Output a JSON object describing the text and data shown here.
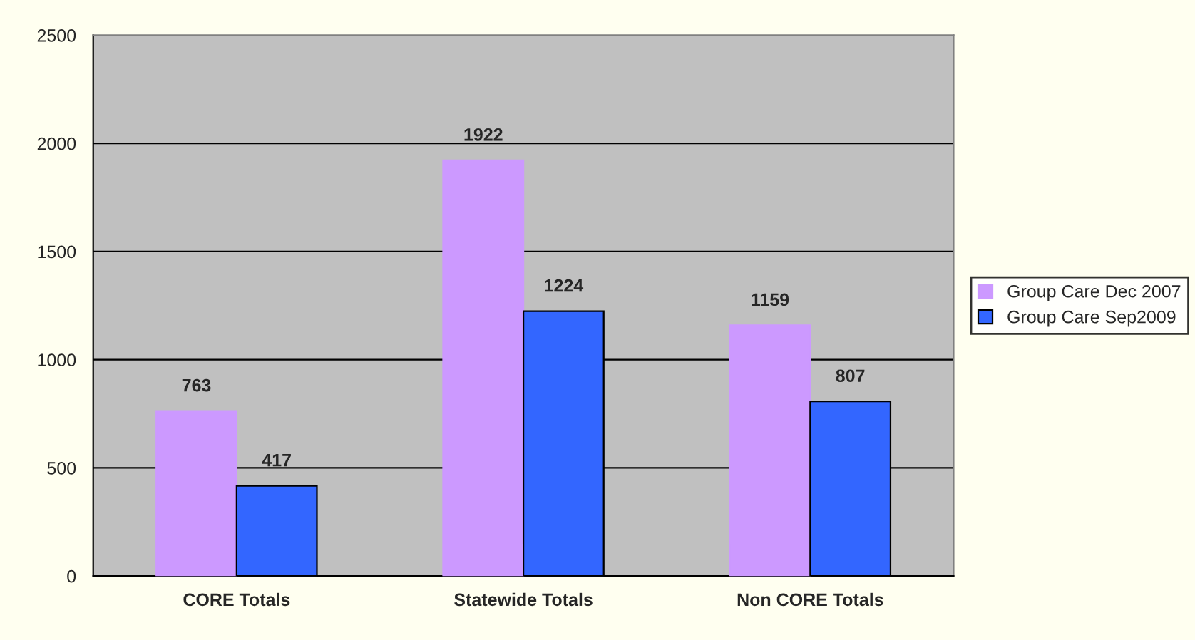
{
  "chart_data": {
    "type": "bar",
    "categories": [
      "CORE Totals",
      "Statewide Totals",
      "Non CORE Totals"
    ],
    "series": [
      {
        "name": "Group Care Dec 2007",
        "color": "#cc99ff",
        "values": [
          763,
          1922,
          1159
        ]
      },
      {
        "name": "Group Care Sep2009",
        "color": "#3366ff",
        "values": [
          417,
          1224,
          807
        ]
      }
    ],
    "ylim": [
      0,
      2500
    ],
    "yticks": [
      0,
      500,
      1000,
      1500,
      2000,
      2500
    ],
    "grid": "y",
    "legend": "right",
    "data_labels": true
  }
}
